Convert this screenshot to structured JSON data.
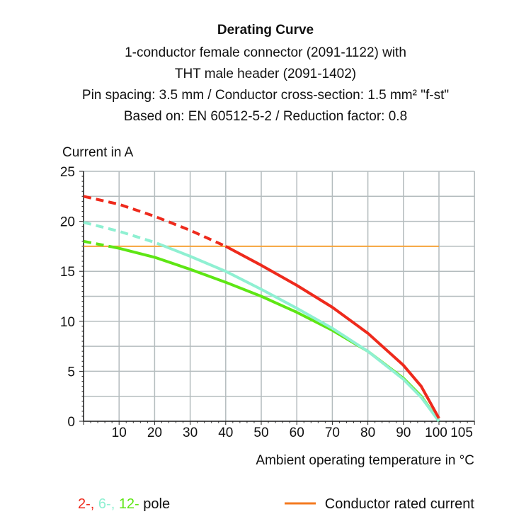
{
  "chart_data": {
    "type": "line",
    "title": "Derating Curve",
    "subtitle": [
      "1-conductor female connector (2091-1122) with",
      "THT male header (2091-1402)",
      "Pin spacing: 3.5 mm / Conductor cross-section: 1.5 mm² \"f-st\"",
      "Based on: EN 60512-5-2 / Reduction factor: 0.8"
    ],
    "ylabel": "Current in A",
    "xlabel": "Ambient operating temperature in °C",
    "xlim": [
      0,
      110
    ],
    "ylim": [
      0,
      25
    ],
    "xticks": [
      10,
      20,
      30,
      40,
      50,
      60,
      70,
      80,
      90,
      100,
      105
    ],
    "yticks": [
      0,
      5,
      10,
      15,
      20,
      25
    ],
    "grid": true,
    "x": [
      0,
      10,
      20,
      30,
      40,
      50,
      60,
      70,
      80,
      90,
      95,
      100
    ],
    "series": [
      {
        "name": "2-",
        "color": "#ee2a1c",
        "values": [
          22.5,
          21.7,
          20.5,
          19.1,
          17.5,
          15.6,
          13.6,
          11.4,
          8.8,
          5.6,
          3.5,
          0.3
        ],
        "dashed_until": 40
      },
      {
        "name": "6-",
        "color": "#8ff0d2",
        "values": [
          19.9,
          19.0,
          17.9,
          16.5,
          15.0,
          13.2,
          11.3,
          9.3,
          7.0,
          4.2,
          2.4,
          0
        ],
        "dashed_until": 22
      },
      {
        "name": "12-",
        "color": "#5ee614",
        "values": [
          18.0,
          17.3,
          16.4,
          15.2,
          13.9,
          12.5,
          10.9,
          9.1,
          7.0,
          4.3,
          2.5,
          0
        ],
        "dashed_until": 8
      }
    ],
    "reference_line": {
      "name": "Conductor rated current",
      "value": 17.5,
      "x_range": [
        0,
        100
      ],
      "color": "#f7a53c"
    },
    "legend": {
      "pole_suffix": " pole",
      "placement": "bottom"
    }
  }
}
